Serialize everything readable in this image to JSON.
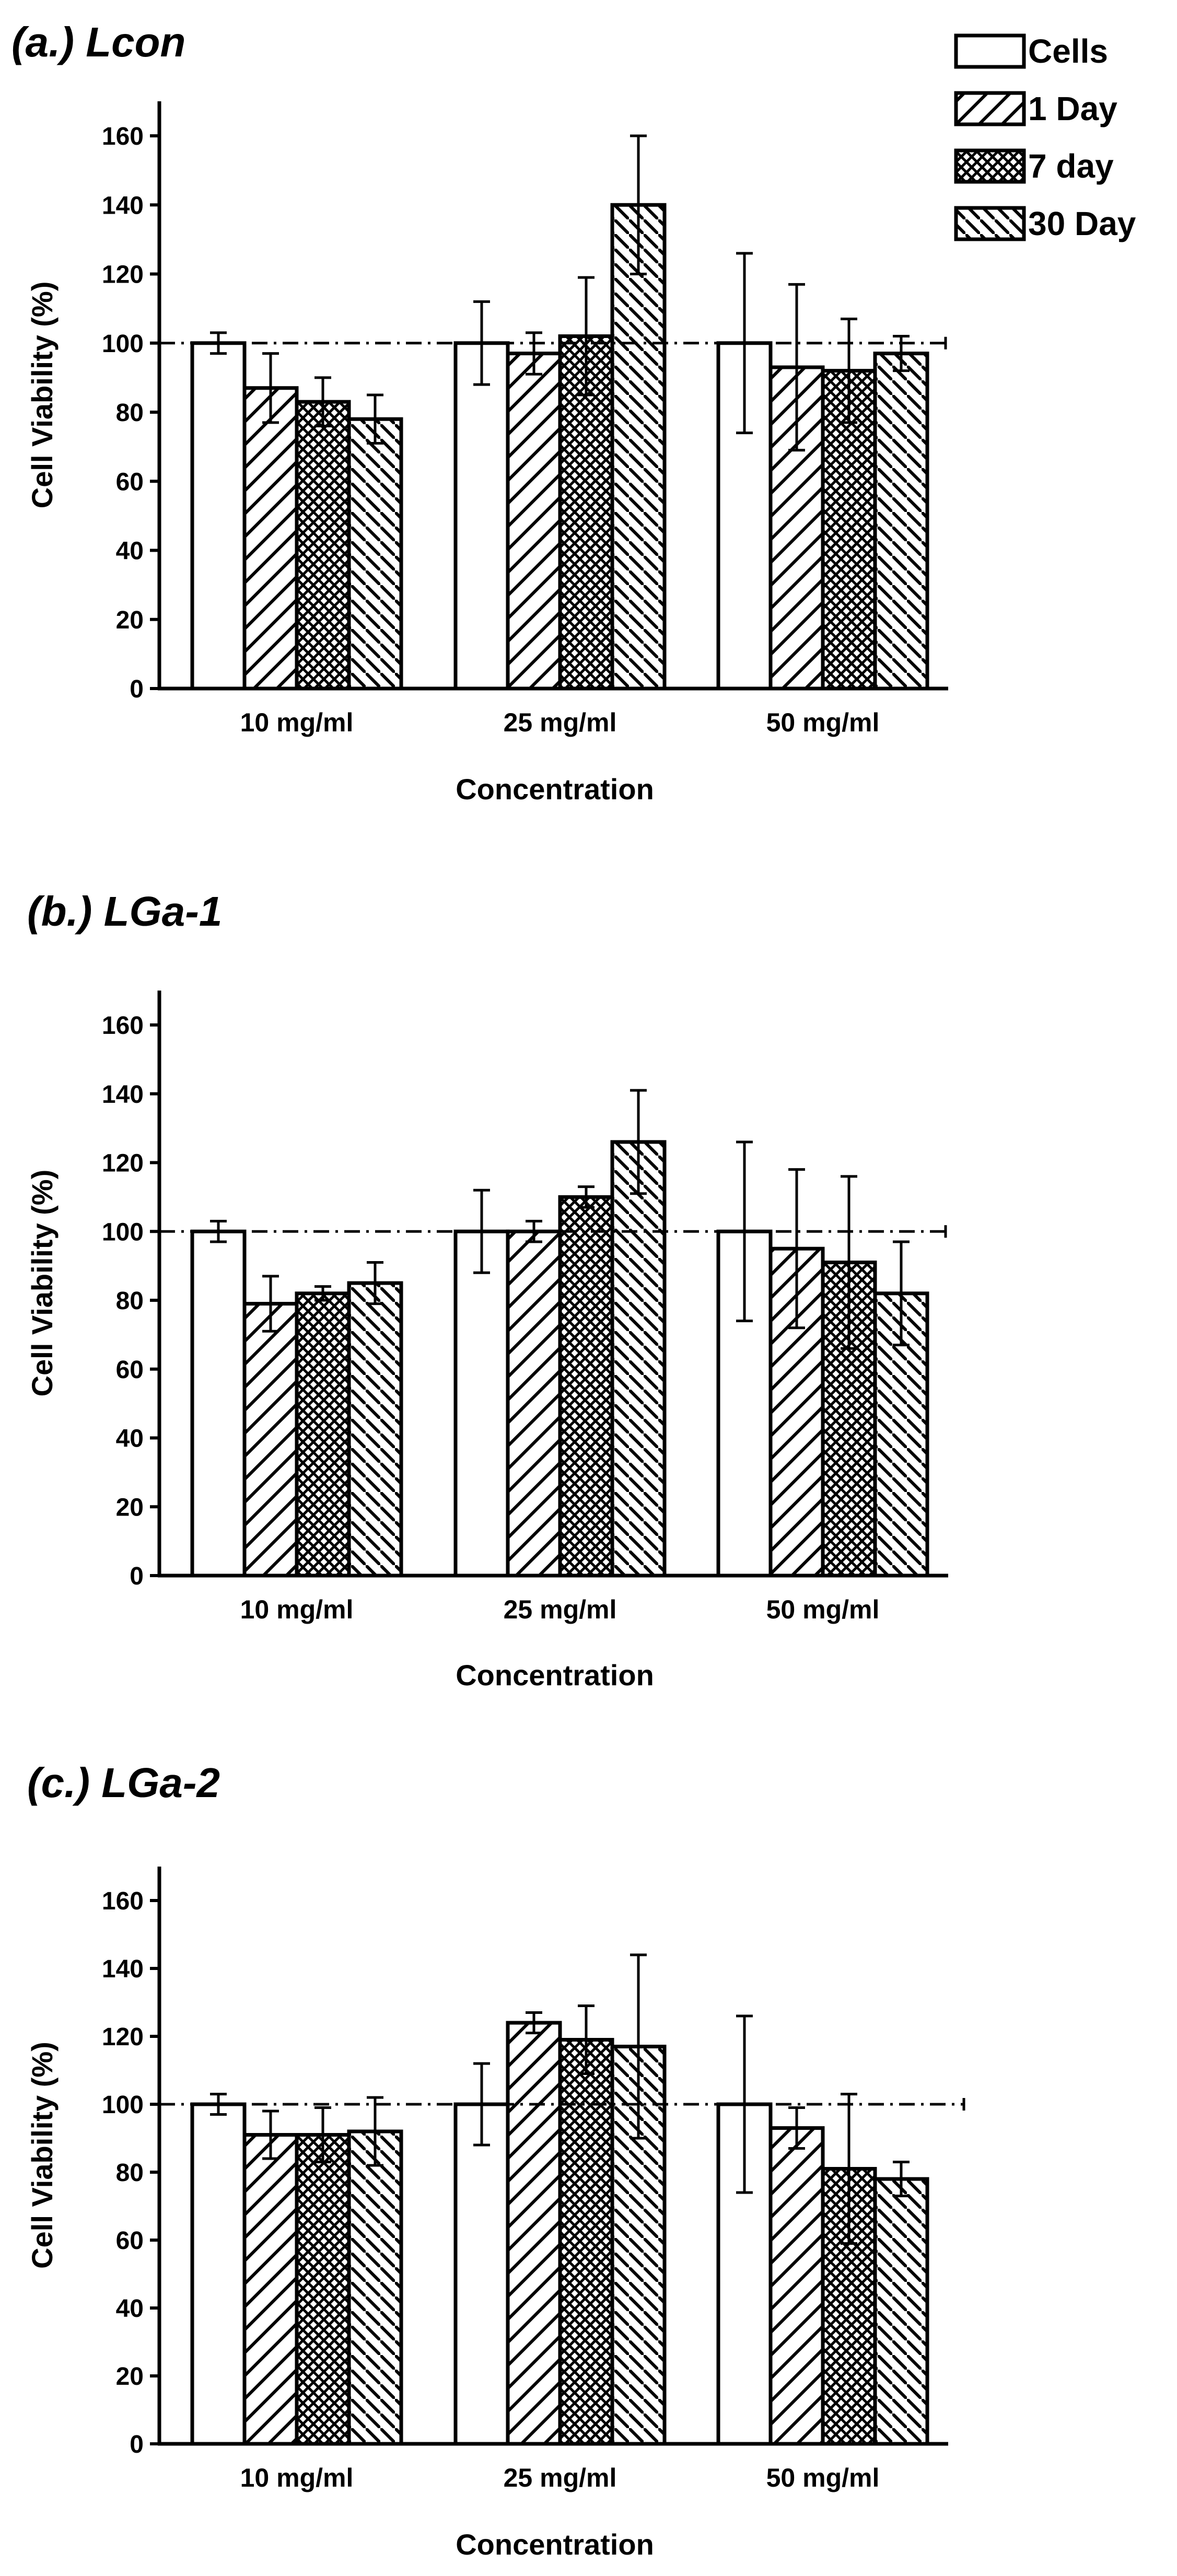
{
  "legend": {
    "entries": [
      {
        "label": "Cells",
        "pattern": "none"
      },
      {
        "label": "1 Day",
        "pattern": "diag-wide"
      },
      {
        "label": "7 day",
        "pattern": "cross"
      },
      {
        "label": "30 Day",
        "pattern": "diag-back"
      }
    ],
    "placement": "top-right"
  },
  "chart_data": [
    {
      "type": "bar",
      "title": "(a.) Lcon",
      "xlabel": "Concentration",
      "ylabel": "Cell Viability (%)",
      "ylim": [
        0,
        170
      ],
      "yticks": [
        0,
        20,
        40,
        60,
        80,
        100,
        120,
        140,
        160
      ],
      "reference_line": 100,
      "categories": [
        "10 mg/ml",
        "25 mg/ml",
        "50 mg/ml"
      ],
      "series": [
        {
          "name": "Cells",
          "values": [
            100,
            100,
            100
          ],
          "errors": [
            3,
            12,
            26
          ]
        },
        {
          "name": "1 Day",
          "values": [
            87,
            97,
            93
          ],
          "errors": [
            10,
            6,
            24
          ]
        },
        {
          "name": "7 day",
          "values": [
            83,
            102,
            92
          ],
          "errors": [
            7,
            17,
            15
          ]
        },
        {
          "name": "30 Day",
          "values": [
            78,
            140,
            97
          ],
          "errors": [
            7,
            20,
            5
          ]
        }
      ]
    },
    {
      "type": "bar",
      "title": "(b.) LGa-1",
      "xlabel": "Concentration",
      "ylabel": "Cell Viability (%)",
      "ylim": [
        0,
        170
      ],
      "yticks": [
        0,
        20,
        40,
        60,
        80,
        100,
        120,
        140,
        160
      ],
      "reference_line": 100,
      "categories": [
        "10 mg/ml",
        "25 mg/ml",
        "50 mg/ml"
      ],
      "series": [
        {
          "name": "Cells",
          "values": [
            100,
            100,
            100
          ],
          "errors": [
            3,
            12,
            26
          ]
        },
        {
          "name": "1 Day",
          "values": [
            79,
            100,
            95
          ],
          "errors": [
            8,
            3,
            23
          ]
        },
        {
          "name": "7 day",
          "values": [
            82,
            110,
            91
          ],
          "errors": [
            2,
            3,
            25
          ]
        },
        {
          "name": "30 Day",
          "values": [
            85,
            126,
            82
          ],
          "errors": [
            6,
            15,
            15
          ]
        }
      ]
    },
    {
      "type": "bar",
      "title": "(c.) LGa-2",
      "xlabel": "Concentration",
      "ylabel": "Cell Viability (%)",
      "ylim": [
        0,
        170
      ],
      "yticks": [
        0,
        20,
        40,
        60,
        80,
        100,
        120,
        140,
        160
      ],
      "reference_line": 100,
      "categories": [
        "10 mg/ml",
        "25 mg/ml",
        "50 mg/ml"
      ],
      "series": [
        {
          "name": "Cells",
          "values": [
            100,
            100,
            100
          ],
          "errors": [
            3,
            12,
            26
          ]
        },
        {
          "name": "1 Day",
          "values": [
            91,
            124,
            93
          ],
          "errors": [
            7,
            3,
            6
          ]
        },
        {
          "name": "7 day",
          "values": [
            91,
            119,
            81
          ],
          "errors": [
            8,
            10,
            22
          ]
        },
        {
          "name": "30 Day",
          "values": [
            92,
            117,
            78
          ],
          "errors": [
            10,
            27,
            5
          ]
        }
      ]
    }
  ]
}
